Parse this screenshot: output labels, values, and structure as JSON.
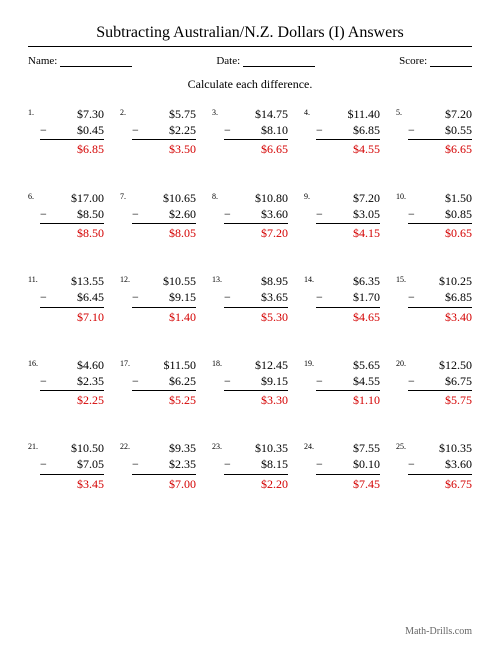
{
  "title": "Subtracting Australian/N.Z. Dollars (I) Answers",
  "meta": {
    "name_label": "Name:",
    "date_label": "Date:",
    "score_label": "Score:"
  },
  "instruction": "Calculate each difference.",
  "currency": "$",
  "minus": "−",
  "footer": "Math-Drills.com",
  "colors": {
    "answer": "#d40000",
    "text": "#000000",
    "footer": "#666666",
    "background": "#ffffff"
  },
  "fonts": {
    "family": "Times New Roman",
    "title_size_pt": 12,
    "body_size_pt": 9,
    "prob_size_pt": 9,
    "num_size_pt": 6,
    "footer_size_pt": 8
  },
  "layout": {
    "cols": 5,
    "rows": 5
  },
  "problems": [
    {
      "n": "1.",
      "a": "$7.30",
      "b": "$0.45",
      "ans": "$6.85"
    },
    {
      "n": "2.",
      "a": "$5.75",
      "b": "$2.25",
      "ans": "$3.50"
    },
    {
      "n": "3.",
      "a": "$14.75",
      "b": "$8.10",
      "ans": "$6.65"
    },
    {
      "n": "4.",
      "a": "$11.40",
      "b": "$6.85",
      "ans": "$4.55"
    },
    {
      "n": "5.",
      "a": "$7.20",
      "b": "$0.55",
      "ans": "$6.65"
    },
    {
      "n": "6.",
      "a": "$17.00",
      "b": "$8.50",
      "ans": "$8.50"
    },
    {
      "n": "7.",
      "a": "$10.65",
      "b": "$2.60",
      "ans": "$8.05"
    },
    {
      "n": "8.",
      "a": "$10.80",
      "b": "$3.60",
      "ans": "$7.20"
    },
    {
      "n": "9.",
      "a": "$7.20",
      "b": "$3.05",
      "ans": "$4.15"
    },
    {
      "n": "10.",
      "a": "$1.50",
      "b": "$0.85",
      "ans": "$0.65"
    },
    {
      "n": "11.",
      "a": "$13.55",
      "b": "$6.45",
      "ans": "$7.10"
    },
    {
      "n": "12.",
      "a": "$10.55",
      "b": "$9.15",
      "ans": "$1.40"
    },
    {
      "n": "13.",
      "a": "$8.95",
      "b": "$3.65",
      "ans": "$5.30"
    },
    {
      "n": "14.",
      "a": "$6.35",
      "b": "$1.70",
      "ans": "$4.65"
    },
    {
      "n": "15.",
      "a": "$10.25",
      "b": "$6.85",
      "ans": "$3.40"
    },
    {
      "n": "16.",
      "a": "$4.60",
      "b": "$2.35",
      "ans": "$2.25"
    },
    {
      "n": "17.",
      "a": "$11.50",
      "b": "$6.25",
      "ans": "$5.25"
    },
    {
      "n": "18.",
      "a": "$12.45",
      "b": "$9.15",
      "ans": "$3.30"
    },
    {
      "n": "19.",
      "a": "$5.65",
      "b": "$4.55",
      "ans": "$1.10"
    },
    {
      "n": "20.",
      "a": "$12.50",
      "b": "$6.75",
      "ans": "$5.75"
    },
    {
      "n": "21.",
      "a": "$10.50",
      "b": "$7.05",
      "ans": "$3.45"
    },
    {
      "n": "22.",
      "a": "$9.35",
      "b": "$2.35",
      "ans": "$7.00"
    },
    {
      "n": "23.",
      "a": "$10.35",
      "b": "$8.15",
      "ans": "$2.20"
    },
    {
      "n": "24.",
      "a": "$7.55",
      "b": "$0.10",
      "ans": "$7.45"
    },
    {
      "n": "25.",
      "a": "$10.35",
      "b": "$3.60",
      "ans": "$6.75"
    }
  ]
}
